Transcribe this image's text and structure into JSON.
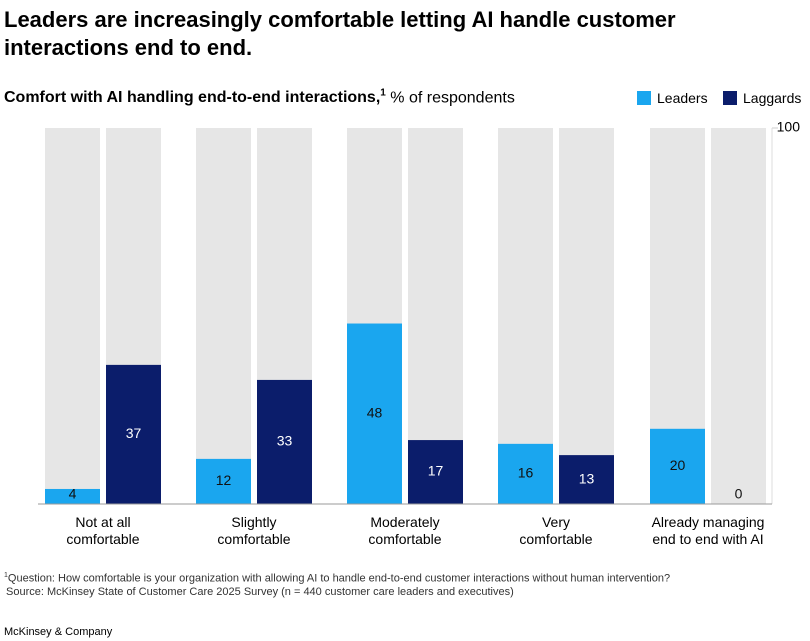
{
  "chart_data": {
    "type": "bar",
    "title": "Leaders are increasingly comfortable letting AI handle customer interactions end to end.",
    "subtitle": "Comfort with AI handling end-to-end interactions,",
    "subtitle_note": "1",
    "unit": "% of respondents",
    "categories": [
      "Not at all\ncomfortable",
      "Slightly\ncomfortable",
      "Moderately\ncomfortable",
      "Very\ncomfortable",
      "Already managing\nend to end with AI"
    ],
    "series": [
      {
        "name": "Leaders",
        "color": "#1aa6ef",
        "values": [
          4,
          12,
          48,
          16,
          20
        ]
      },
      {
        "name": "Laggards",
        "color": "#0b1d6b",
        "values": [
          37,
          33,
          17,
          13,
          0
        ]
      }
    ],
    "ylim": [
      0,
      100
    ],
    "yticks": [
      100
    ],
    "footnote": "Question: How comfortable is your organization with allowing AI to handle end-to-end customer interactions without human intervention?",
    "source": "Source: McKinsey State of Customer Care 2025 Survey (n = 440 customer care leaders and executives)",
    "brand": "McKinsey & Company"
  }
}
